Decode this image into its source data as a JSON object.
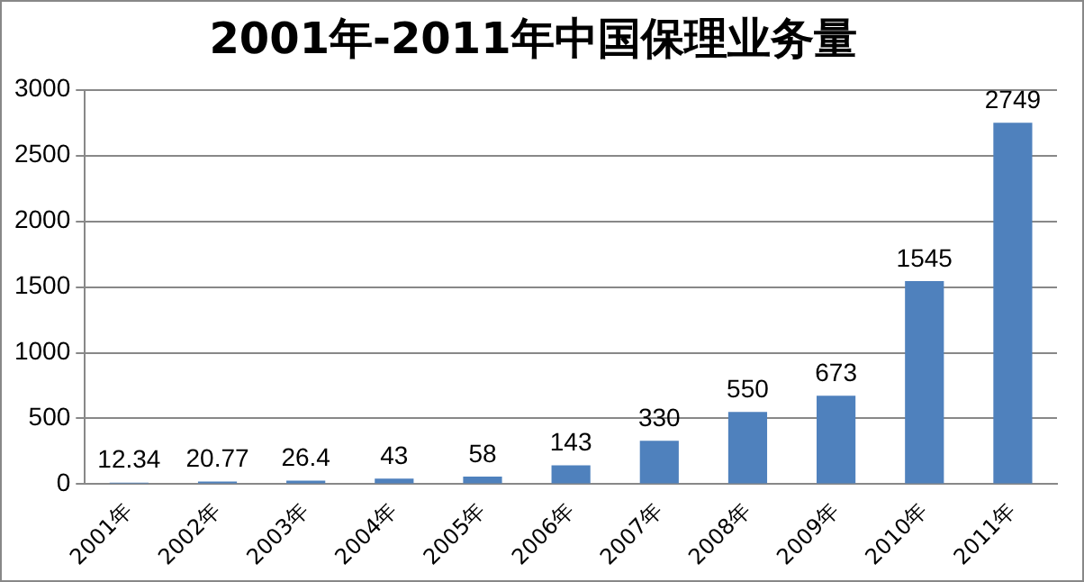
{
  "chart_data": {
    "type": "bar",
    "title": "2001年-2011年中国保理业务量",
    "categories": [
      "2001年",
      "2002年",
      "2003年",
      "2004年",
      "2005年",
      "2006年",
      "2007年",
      "2008年",
      "2009年",
      "2010年",
      "2011年"
    ],
    "values": [
      12.34,
      20.77,
      26.4,
      43,
      58,
      143,
      330,
      550,
      673,
      1545,
      2749
    ],
    "color": "#4f81bd",
    "ylim": [
      0,
      3000
    ],
    "yticks": [
      0,
      500,
      1000,
      1500,
      2000,
      2500,
      3000
    ],
    "grid": "y",
    "data_labels": true,
    "legend": false
  }
}
